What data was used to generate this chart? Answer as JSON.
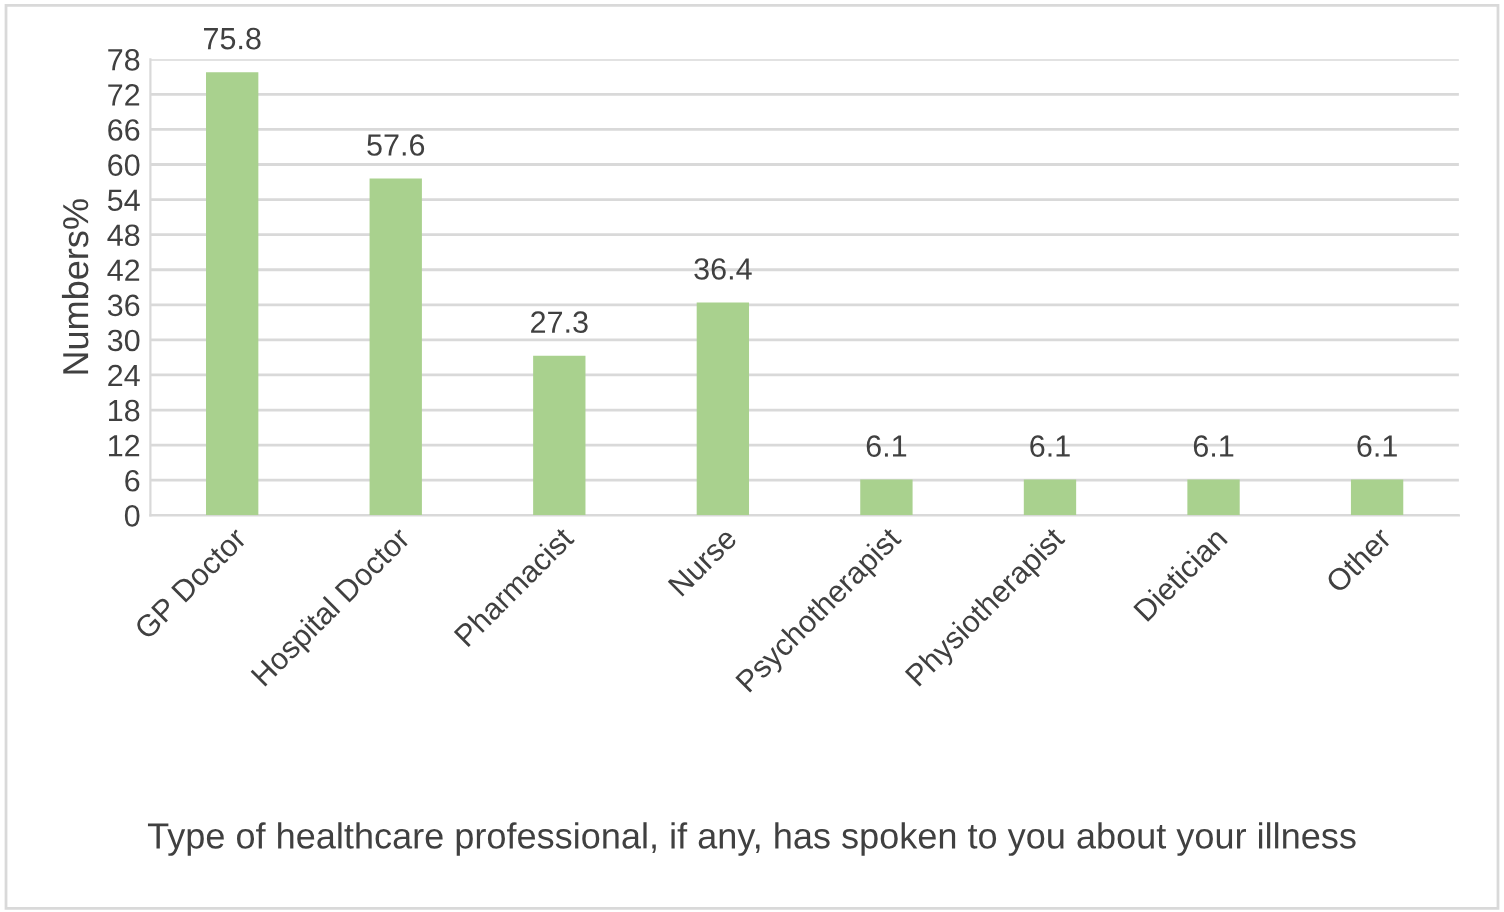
{
  "chart_data": {
    "type": "bar",
    "categories": [
      "GP Doctor",
      "Hospital Doctor",
      "Pharmacist",
      "Nurse",
      "Psychotherapist",
      "Physiotherapist",
      "Dietician",
      "Other"
    ],
    "values": [
      75.8,
      57.6,
      27.3,
      36.4,
      6.1,
      6.1,
      6.1,
      6.1
    ],
    "color": "#a9d18e",
    "ylabel": "Numbers%",
    "xlabel": "Type of healthcare professional, if any, has spoken to you about your illness",
    "ylim": [
      0,
      78
    ],
    "yticks": [
      0,
      6,
      12,
      18,
      24,
      30,
      36,
      42,
      48,
      54,
      60,
      66,
      72,
      78
    ],
    "grid": "y",
    "data_labels": true
  }
}
